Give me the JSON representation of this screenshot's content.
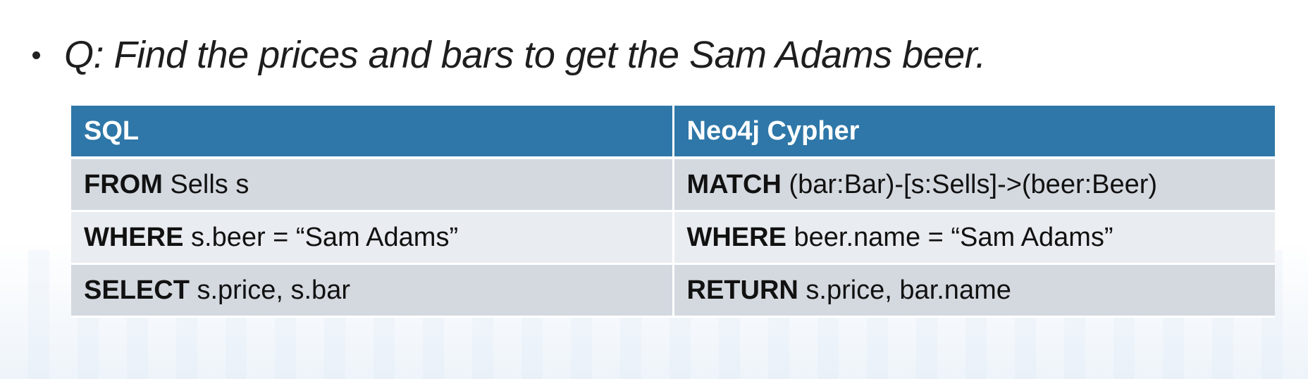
{
  "slide": {
    "question": "Q: Find the prices and bars to get the Sam Adams beer."
  },
  "table": {
    "headers": [
      "SQL",
      "Neo4j Cypher"
    ],
    "rows": [
      {
        "sql": {
          "keyword": "FROM",
          "rest": " Sells s"
        },
        "cypher": {
          "keyword": "MATCH",
          "rest": " (bar:Bar)-[s:Sells]->(beer:Beer)"
        }
      },
      {
        "sql": {
          "keyword": "WHERE",
          "rest": " s.beer = “Sam Adams”"
        },
        "cypher": {
          "keyword": "WHERE",
          "rest": " beer.name = “Sam Adams”"
        }
      },
      {
        "sql": {
          "keyword": "SELECT",
          "rest": " s.price, s.bar"
        },
        "cypher": {
          "keyword": "RETURN",
          "rest": " s.price, bar.name"
        }
      }
    ]
  },
  "colors": {
    "header_bg": "#2e77a8",
    "row_dark": "#d4d9e0",
    "row_light": "#e9ecf0"
  }
}
